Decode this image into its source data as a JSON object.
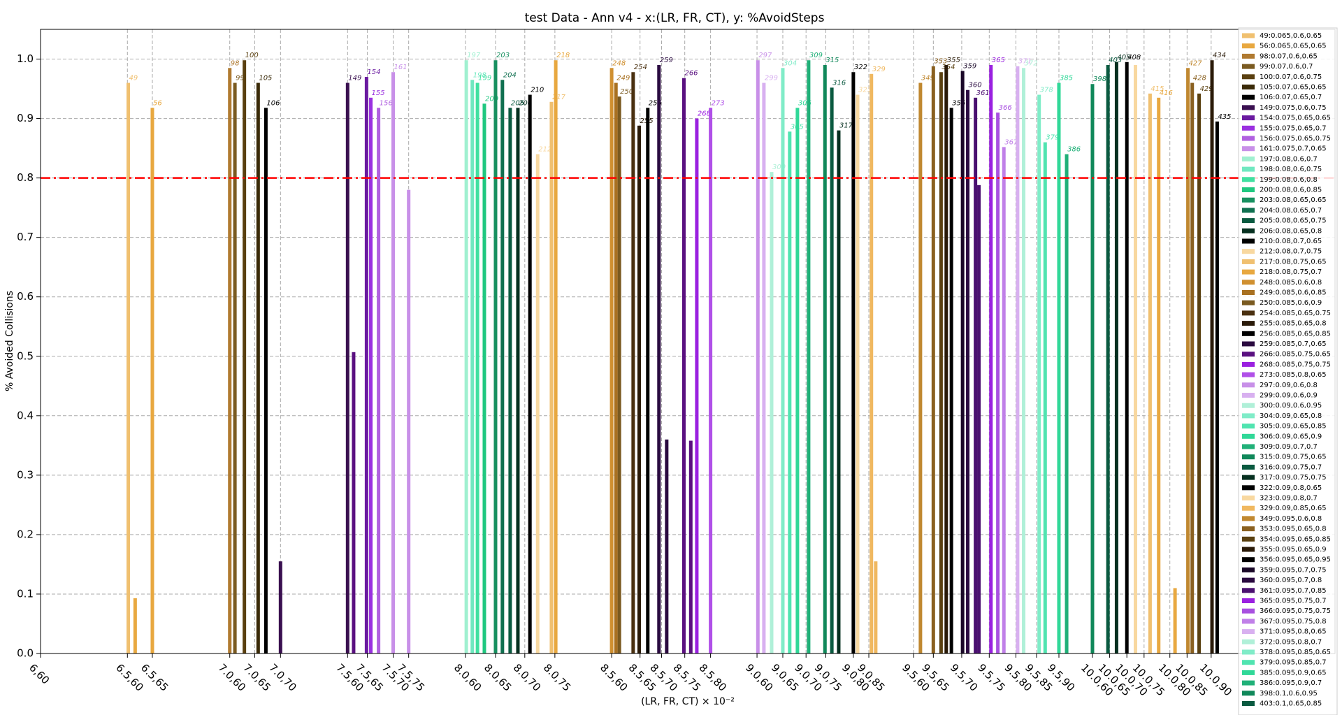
{
  "chart_data": {
    "type": "bar",
    "title": "test Data - Ann v4 - x:(LR, FR, CT), y: %AvoidSteps",
    "x_label": "(LR, FR, CT) × 10⁻²",
    "y_label": "% Avoided Collisions",
    "xlim": [
      0,
      150.5
    ],
    "ylim": [
      0,
      1.05
    ],
    "yticks": [
      {
        "value": 0,
        "label": "0.0"
      },
      0.1,
      0.2,
      0.3,
      0.4,
      0.5,
      0.6,
      0.7,
      0.8,
      0.9,
      {
        "value": 1,
        "label": "1.0"
      }
    ],
    "xticks": [
      {
        "value": 0,
        "label": "6,60"
      },
      {
        "value": 10.1,
        "label": "6.5,60"
      },
      {
        "value": 13,
        "label": "6.5,65"
      },
      {
        "value": 22,
        "label": "7.0,60"
      },
      {
        "value": 24.9,
        "label": "7.0,65"
      },
      {
        "value": 27.9,
        "label": "7.0,70"
      },
      {
        "value": 35.7,
        "label": "7.5,60"
      },
      {
        "value": 38,
        "label": "7.5,65"
      },
      {
        "value": 41,
        "label": "7.5,70"
      },
      {
        "value": 42.8,
        "label": "7.5,75"
      },
      {
        "value": 49.4,
        "label": "8.0,60"
      },
      {
        "value": 52.9,
        "label": "8.0,65"
      },
      {
        "value": 56.3,
        "label": "8.0,70"
      },
      {
        "value": 59.8,
        "label": "8.0,75"
      },
      {
        "value": 66.4,
        "label": "8.5,60"
      },
      {
        "value": 69.7,
        "label": "8.5,65"
      },
      {
        "value": 72.2,
        "label": "8.5,70"
      },
      {
        "value": 74.9,
        "label": "8.5,75"
      },
      {
        "value": 77.9,
        "label": "8.5,80"
      },
      {
        "value": 83.3,
        "label": "9.0,60"
      },
      {
        "value": 86.3,
        "label": "9.0,65"
      },
      {
        "value": 89,
        "label": "9.0,70"
      },
      {
        "value": 91.3,
        "label": "9.0,75"
      },
      {
        "value": 94.5,
        "label": "9.0,80"
      },
      {
        "value": 96.3,
        "label": "9.0,85"
      },
      {
        "value": 101.5,
        "label": "9.5,60"
      },
      {
        "value": 103.8,
        "label": "9.5,65"
      },
      {
        "value": 107.1,
        "label": "9.5,70"
      },
      {
        "value": 110.3,
        "label": "9.5,75"
      },
      {
        "value": 113.4,
        "label": "9.5,80"
      },
      {
        "value": 115.8,
        "label": "9.5,85"
      },
      {
        "value": 118.4,
        "label": "9.5,90"
      },
      {
        "value": 122.3,
        "label": "10.0,60"
      },
      {
        "value": 124.3,
        "label": "10.0,65"
      },
      {
        "value": 126.3,
        "label": "10.0,70"
      },
      {
        "value": 128.3,
        "label": "10.0,75"
      },
      {
        "value": 131.3,
        "label": "10.0,80"
      },
      {
        "value": 133.3,
        "label": "10.0,85"
      },
      {
        "value": 136.1,
        "label": "10.0,90"
      }
    ],
    "grid": true,
    "hline": {
      "value": 0.8,
      "color": "#ff0000"
    },
    "bars": [
      {
        "id": "49",
        "x": 10.2,
        "value": 0.96,
        "color": "#f0c070"
      },
      {
        "id": null,
        "x": 11.0,
        "value": 0.093,
        "color": "#e8a840"
      },
      {
        "id": "56",
        "x": 13.0,
        "value": 0.918,
        "color": "#e8a840"
      },
      {
        "id": "98",
        "x": 22.0,
        "value": 0.985,
        "color": "#b07a30"
      },
      {
        "id": "99",
        "x": 22.6,
        "value": 0.96,
        "color": "#7a5a20"
      },
      {
        "id": "100",
        "x": 23.7,
        "value": 0.998,
        "color": "#5a4010"
      },
      {
        "id": "105",
        "x": 25.3,
        "value": 0.96,
        "color": "#3a2a08"
      },
      {
        "id": "106",
        "x": 26.2,
        "value": 0.918,
        "color": "#000000"
      },
      {
        "id": null,
        "x": 27.9,
        "value": 0.155,
        "color": "#3a1050"
      },
      {
        "id": "149",
        "x": 35.7,
        "value": 0.96,
        "color": "#3a1050"
      },
      {
        "id": null,
        "x": 36.4,
        "value": 0.507,
        "color": "#5a1080"
      },
      {
        "id": "154",
        "x": 37.9,
        "value": 0.97,
        "color": "#6a1aa0"
      },
      {
        "id": "155",
        "x": 38.4,
        "value": 0.935,
        "color": "#9a30e0"
      },
      {
        "id": "156",
        "x": 39.3,
        "value": 0.918,
        "color": "#b060e0"
      },
      {
        "id": "161",
        "x": 41.0,
        "value": 0.978,
        "color": "#c890e8"
      },
      {
        "id": null,
        "x": 42.8,
        "value": 0.78,
        "color": "#c890e8"
      },
      {
        "id": "197",
        "x": 49.5,
        "value": 0.998,
        "color": "#a0f0d0"
      },
      {
        "id": "198",
        "x": 50.2,
        "value": 0.965,
        "color": "#70e8c0"
      },
      {
        "id": "199",
        "x": 50.8,
        "value": 0.96,
        "color": "#40e0a0"
      },
      {
        "id": "200",
        "x": 51.6,
        "value": 0.925,
        "color": "#20c880"
      },
      {
        "id": "203",
        "x": 52.9,
        "value": 0.998,
        "color": "#189060"
      },
      {
        "id": "204",
        "x": 53.7,
        "value": 0.965,
        "color": "#107050"
      },
      {
        "id": "205",
        "x": 54.6,
        "value": 0.918,
        "color": "#0a5a40"
      },
      {
        "id": "206",
        "x": 55.5,
        "value": 0.918,
        "color": "#063020"
      },
      {
        "id": "210",
        "x": 56.9,
        "value": 0.94,
        "color": "#000000"
      },
      {
        "id": "212",
        "x": 57.8,
        "value": 0.84,
        "color": "#f8d8a0"
      },
      {
        "id": "217",
        "x": 59.4,
        "value": 0.928,
        "color": "#f0c070"
      },
      {
        "id": "218",
        "x": 59.9,
        "value": 0.998,
        "color": "#e8a840"
      },
      {
        "id": "248",
        "x": 66.4,
        "value": 0.985,
        "color": "#d09030"
      },
      {
        "id": "249",
        "x": 66.9,
        "value": 0.96,
        "color": "#a87020"
      },
      {
        "id": "250",
        "x": 67.3,
        "value": 0.937,
        "color": "#7a5a20"
      },
      {
        "id": "254",
        "x": 68.9,
        "value": 0.978,
        "color": "#4a3010"
      },
      {
        "id": "255",
        "x": 69.6,
        "value": 0.888,
        "color": "#2a1a08"
      },
      {
        "id": "256",
        "x": 70.6,
        "value": 0.918,
        "color": "#000000"
      },
      {
        "id": "259",
        "x": 71.9,
        "value": 0.99,
        "color": "#2a0a40"
      },
      {
        "id": null,
        "x": 72.8,
        "value": 0.36,
        "color": "#2a0a40"
      },
      {
        "id": "266",
        "x": 74.8,
        "value": 0.968,
        "color": "#5a1080"
      },
      {
        "id": null,
        "x": 75.6,
        "value": 0.358,
        "color": "#5a1080"
      },
      {
        "id": "268",
        "x": 76.3,
        "value": 0.9,
        "color": "#9a20e0"
      },
      {
        "id": "273",
        "x": 77.9,
        "value": 0.918,
        "color": "#b050e8"
      },
      {
        "id": "297",
        "x": 83.4,
        "value": 0.998,
        "color": "#c890e8"
      },
      {
        "id": "299",
        "x": 84.1,
        "value": 0.96,
        "color": "#d8b0f0"
      },
      {
        "id": "300",
        "x": 85.0,
        "value": 0.81,
        "color": "#b0f0d8"
      },
      {
        "id": "304",
        "x": 86.3,
        "value": 0.985,
        "color": "#80ecc8"
      },
      {
        "id": "305",
        "x": 87.1,
        "value": 0.878,
        "color": "#50e4b0"
      },
      {
        "id": "306",
        "x": 88.0,
        "value": 0.918,
        "color": "#30d898"
      },
      {
        "id": "309",
        "x": 89.3,
        "value": 0.998,
        "color": "#20b078"
      },
      {
        "id": "315",
        "x": 91.2,
        "value": 0.99,
        "color": "#10885a"
      },
      {
        "id": "316",
        "x": 92.0,
        "value": 0.952,
        "color": "#0a5a40"
      },
      {
        "id": "317",
        "x": 92.8,
        "value": 0.88,
        "color": "#063020"
      },
      {
        "id": "322",
        "x": 94.5,
        "value": 0.978,
        "color": "#000000"
      },
      {
        "id": "323",
        "x": 95.0,
        "value": 0.94,
        "color": "#f8d8a0"
      },
      {
        "id": "329",
        "x": 96.6,
        "value": 0.975,
        "color": "#f0b860"
      },
      {
        "id": null,
        "x": 97.1,
        "value": 0.155,
        "color": "#f0b860"
      },
      {
        "id": "349",
        "x": 102.3,
        "value": 0.96,
        "color": "#c08830"
      },
      {
        "id": "353",
        "x": 103.8,
        "value": 0.988,
        "color": "#8a6020"
      },
      {
        "id": "354",
        "x": 104.7,
        "value": 0.978,
        "color": "#5a4010"
      },
      {
        "id": "355",
        "x": 105.3,
        "value": 0.99,
        "color": "#2a1a08"
      },
      {
        "id": "356",
        "x": 105.9,
        "value": 0.918,
        "color": "#000000"
      },
      {
        "id": "359",
        "x": 107.2,
        "value": 0.98,
        "color": "#1a0828"
      },
      {
        "id": "360",
        "x": 107.8,
        "value": 0.948,
        "color": "#2a0a40"
      },
      {
        "id": "361",
        "x": 108.7,
        "value": 0.935,
        "color": "#4a1070"
      },
      {
        "id": null,
        "x": 109.1,
        "value": 0.788,
        "color": "#4a1070"
      },
      {
        "id": "365",
        "x": 110.5,
        "value": 0.99,
        "color": "#9a20e0"
      },
      {
        "id": "366",
        "x": 111.3,
        "value": 0.91,
        "color": "#a850e0"
      },
      {
        "id": "367",
        "x": 112.0,
        "value": 0.852,
        "color": "#c080e8"
      },
      {
        "id": "371",
        "x": 113.6,
        "value": 0.988,
        "color": "#d8b0f0"
      },
      {
        "id": "372",
        "x": 114.3,
        "value": 0.985,
        "color": "#b0f0d8"
      },
      {
        "id": "378",
        "x": 116.1,
        "value": 0.94,
        "color": "#80ecc8"
      },
      {
        "id": "379",
        "x": 116.8,
        "value": 0.86,
        "color": "#50e4b0"
      },
      {
        "id": "385",
        "x": 118.4,
        "value": 0.96,
        "color": "#30d898"
      },
      {
        "id": "386",
        "x": 119.3,
        "value": 0.84,
        "color": "#20b078"
      },
      {
        "id": "398",
        "x": 122.3,
        "value": 0.958,
        "color": "#10885a"
      },
      {
        "id": "403",
        "x": 124.1,
        "value": 0.99,
        "color": "#0a5a40"
      },
      {
        "id": "405",
        "x": 125.1,
        "value": 0.995,
        "color": "#063020"
      },
      {
        "id": "408",
        "x": 126.3,
        "value": 0.995,
        "color": "#000000"
      },
      {
        "id": null,
        "x": 127.3,
        "value": 0.99,
        "color": "#f8d8a0"
      },
      {
        "id": "415",
        "x": 129.0,
        "value": 0.942,
        "color": "#f0c070"
      },
      {
        "id": "416",
        "x": 130.0,
        "value": 0.935,
        "color": "#e8a840"
      },
      {
        "id": null,
        "x": 131.9,
        "value": 0.11,
        "color": "#e8a840"
      },
      {
        "id": "427",
        "x": 133.4,
        "value": 0.985,
        "color": "#c08830"
      },
      {
        "id": "428",
        "x": 133.9,
        "value": 0.96,
        "color": "#8a6020"
      },
      {
        "id": "429",
        "x": 134.7,
        "value": 0.942,
        "color": "#5a4010"
      },
      {
        "id": "434",
        "x": 136.2,
        "value": 0.998,
        "color": "#2a1a08"
      },
      {
        "id": "435",
        "x": 136.8,
        "value": 0.895,
        "color": "#000000"
      }
    ],
    "legend": [
      {
        "name": "49:0.065,0.6,0.65",
        "color": "#f0c070"
      },
      {
        "name": "56:0.065,0.65,0.65",
        "color": "#e8a840"
      },
      {
        "name": "98:0.07,0.6,0.65",
        "color": "#b07a30"
      },
      {
        "name": "99:0.07,0.6,0.7",
        "color": "#7a5a20"
      },
      {
        "name": "100:0.07,0.6,0.75",
        "color": "#5a4010"
      },
      {
        "name": "105:0.07,0.65,0.65",
        "color": "#3a2a08"
      },
      {
        "name": "106:0.07,0.65,0.7",
        "color": "#000000"
      },
      {
        "name": "149:0.075,0.6,0.75",
        "color": "#3a1050"
      },
      {
        "name": "154:0.075,0.65,0.65",
        "color": "#6a1aa0"
      },
      {
        "name": "155:0.075,0.65,0.7",
        "color": "#9a30e0"
      },
      {
        "name": "156:0.075,0.65,0.75",
        "color": "#b060e0"
      },
      {
        "name": "161:0.075,0.7,0.65",
        "color": "#c890e8"
      },
      {
        "name": "197:0.08,0.6,0.7",
        "color": "#a0f0d0"
      },
      {
        "name": "198:0.08,0.6,0.75",
        "color": "#70e8c0"
      },
      {
        "name": "199:0.08,0.6,0.8",
        "color": "#40e0a0"
      },
      {
        "name": "200:0.08,0.6,0.85",
        "color": "#20c880"
      },
      {
        "name": "203:0.08,0.65,0.65",
        "color": "#189060"
      },
      {
        "name": "204:0.08,0.65,0.7",
        "color": "#107050"
      },
      {
        "name": "205:0.08,0.65,0.75",
        "color": "#0a5a40"
      },
      {
        "name": "206:0.08,0.65,0.8",
        "color": "#063020"
      },
      {
        "name": "210:0.08,0.7,0.65",
        "color": "#000000"
      },
      {
        "name": "212:0.08,0.7,0.75",
        "color": "#f8d8a0"
      },
      {
        "name": "217:0.08,0.75,0.65",
        "color": "#f0c070"
      },
      {
        "name": "218:0.08,0.75,0.7",
        "color": "#e8a840"
      },
      {
        "name": "248:0.085,0.6,0.8",
        "color": "#d09030"
      },
      {
        "name": "249:0.085,0.6,0.85",
        "color": "#a87020"
      },
      {
        "name": "250:0.085,0.6,0.9",
        "color": "#7a5a20"
      },
      {
        "name": "254:0.085,0.65,0.75",
        "color": "#4a3010"
      },
      {
        "name": "255:0.085,0.65,0.8",
        "color": "#2a1a08"
      },
      {
        "name": "256:0.085,0.65,0.85",
        "color": "#000000"
      },
      {
        "name": "259:0.085,0.7,0.65",
        "color": "#2a0a40"
      },
      {
        "name": "266:0.085,0.75,0.65",
        "color": "#5a1080"
      },
      {
        "name": "268:0.085,0.75,0.75",
        "color": "#9a20e0"
      },
      {
        "name": "273:0.085,0.8,0.65",
        "color": "#b050e8"
      },
      {
        "name": "297:0.09,0.6,0.8",
        "color": "#c890e8"
      },
      {
        "name": "299:0.09,0.6,0.9",
        "color": "#d8b0f0"
      },
      {
        "name": "300:0.09,0.6,0.95",
        "color": "#b0f0d8"
      },
      {
        "name": "304:0.09,0.65,0.8",
        "color": "#80ecc8"
      },
      {
        "name": "305:0.09,0.65,0.85",
        "color": "#50e4b0"
      },
      {
        "name": "306:0.09,0.65,0.9",
        "color": "#30d898"
      },
      {
        "name": "309:0.09,0.7,0.7",
        "color": "#20b078"
      },
      {
        "name": "315:0.09,0.75,0.65",
        "color": "#10885a"
      },
      {
        "name": "316:0.09,0.75,0.7",
        "color": "#0a5a40"
      },
      {
        "name": "317:0.09,0.75,0.75",
        "color": "#063020"
      },
      {
        "name": "322:0.09,0.8,0.65",
        "color": "#000000"
      },
      {
        "name": "323:0.09,0.8,0.7",
        "color": "#f8d8a0"
      },
      {
        "name": "329:0.09,0.85,0.65",
        "color": "#f0b860"
      },
      {
        "name": "349:0.095,0.6,0.8",
        "color": "#c08830"
      },
      {
        "name": "353:0.095,0.65,0.8",
        "color": "#8a6020"
      },
      {
        "name": "354:0.095,0.65,0.85",
        "color": "#5a4010"
      },
      {
        "name": "355:0.095,0.65,0.9",
        "color": "#2a1a08"
      },
      {
        "name": "356:0.095,0.65,0.95",
        "color": "#000000"
      },
      {
        "name": "359:0.095,0.7,0.75",
        "color": "#1a0828"
      },
      {
        "name": "360:0.095,0.7,0.8",
        "color": "#2a0a40"
      },
      {
        "name": "361:0.095,0.7,0.85",
        "color": "#4a1070"
      },
      {
        "name": "365:0.095,0.75,0.7",
        "color": "#9a20e0"
      },
      {
        "name": "366:0.095,0.75,0.75",
        "color": "#a850e0"
      },
      {
        "name": "367:0.095,0.75,0.8",
        "color": "#c080e8"
      },
      {
        "name": "371:0.095,0.8,0.65",
        "color": "#d8b0f0"
      },
      {
        "name": "372:0.095,0.8,0.7",
        "color": "#b0f0d8"
      },
      {
        "name": "378:0.095,0.85,0.65",
        "color": "#80ecc8"
      },
      {
        "name": "379:0.095,0.85,0.7",
        "color": "#50e4b0"
      },
      {
        "name": "385:0.095,0.9,0.65",
        "color": "#30d898"
      },
      {
        "name": "386:0.095,0.9,0.7",
        "color": "#20b078"
      },
      {
        "name": "398:0.1,0.6,0.95",
        "color": "#10885a"
      },
      {
        "name": "403:0.1,0.65,0.85",
        "color": "#0a5a40"
      }
    ]
  }
}
